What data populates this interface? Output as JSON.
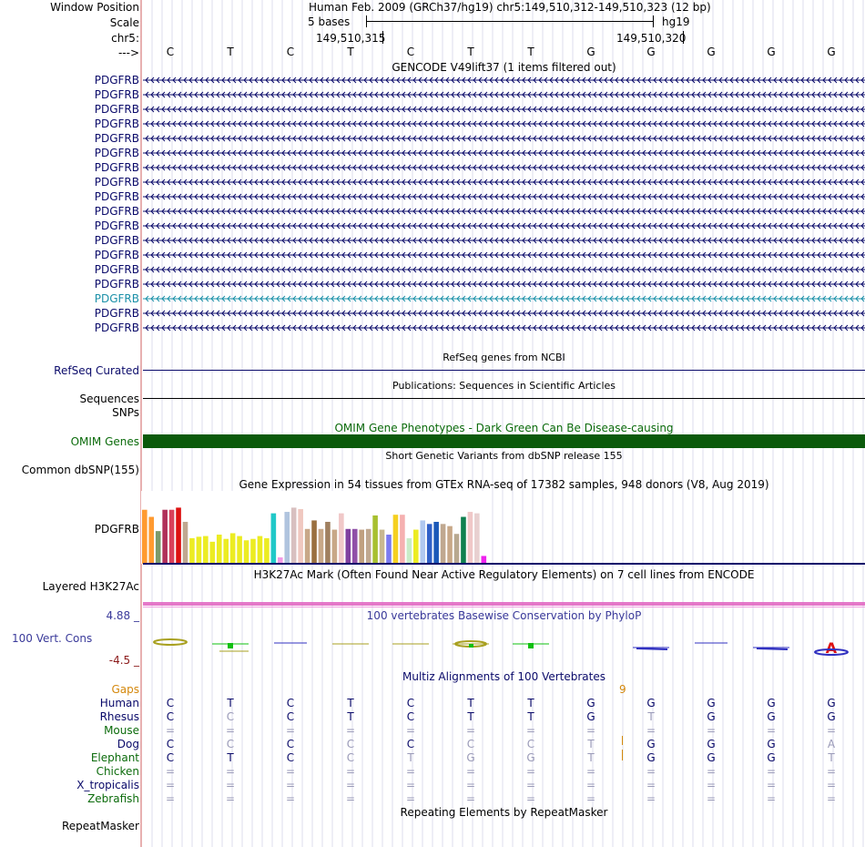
{
  "colors": {
    "navy": "#0a0a6a",
    "green": "#0b6b0b",
    "omim": "#0b5a0b",
    "gaps": "#d4880c",
    "h3k27": "#e060c0",
    "phylopUp": "#3030c0",
    "phylopDown": "#8b1a1a"
  },
  "ruler": {
    "window_label": "Window Position",
    "scale_label": "Scale",
    "chrom_label": "chr5:",
    "strand_label": "--->",
    "assembly_text": "Human Feb. 2009 (GRCh37/hg19)   chr5:149,510,312-149,510,323 (12 bp)",
    "scale_text": "5 bases",
    "db_text": "hg19",
    "coord1": "149,510,315",
    "coord2": "149,510,320",
    "bases": [
      "C",
      "T",
      "C",
      "T",
      "C",
      "T",
      "T",
      "G",
      "G",
      "G",
      "G",
      "G"
    ]
  },
  "gencode": {
    "title": "GENCODE V49lift37 (1 items filtered out)",
    "items": [
      {
        "label": "PDGFRB",
        "highlight": false
      },
      {
        "label": "PDGFRB",
        "highlight": false
      },
      {
        "label": "PDGFRB",
        "highlight": false
      },
      {
        "label": "PDGFRB",
        "highlight": false
      },
      {
        "label": "PDGFRB",
        "highlight": false
      },
      {
        "label": "PDGFRB",
        "highlight": false
      },
      {
        "label": "PDGFRB",
        "highlight": false
      },
      {
        "label": "PDGFRB",
        "highlight": false
      },
      {
        "label": "PDGFRB",
        "highlight": false
      },
      {
        "label": "PDGFRB",
        "highlight": false
      },
      {
        "label": "PDGFRB",
        "highlight": false
      },
      {
        "label": "PDGFRB",
        "highlight": false
      },
      {
        "label": "PDGFRB",
        "highlight": false
      },
      {
        "label": "PDGFRB",
        "highlight": false
      },
      {
        "label": "PDGFRB",
        "highlight": false
      },
      {
        "label": "PDGFRB",
        "highlight": true
      },
      {
        "label": "PDGFRB",
        "highlight": false
      },
      {
        "label": "PDGFRB",
        "highlight": false
      }
    ]
  },
  "refseq": {
    "title": "RefSeq genes from NCBI",
    "label": "RefSeq Curated"
  },
  "publications": {
    "title": "Publications: Sequences in Scientific Articles",
    "label_sequences": "Sequences",
    "label_snps": "SNPs"
  },
  "omim": {
    "title": "OMIM Gene Phenotypes - Dark Green Can Be Disease-causing",
    "label": "OMIM Genes"
  },
  "dbsnp": {
    "title": "Short Genetic Variants from dbSNP release 155",
    "label": "Common dbSNP(155)"
  },
  "gtex": {
    "title": "Gene Expression in 54 tissues from GTEx RNA-seq of 17382 samples, 948 donors (V8, Aug 2019)",
    "label": "PDGFRB",
    "bars": [
      {
        "v": 0.76,
        "c": "#ff9a30"
      },
      {
        "v": 0.66,
        "c": "#ff9a30"
      },
      {
        "v": 0.46,
        "c": "#7a9a6a"
      },
      {
        "v": 0.76,
        "c": "#b0305a"
      },
      {
        "v": 0.76,
        "c": "#d8405a"
      },
      {
        "v": 0.79,
        "c": "#dd1010"
      },
      {
        "v": 0.59,
        "c": "#c0a890"
      },
      {
        "v": 0.36,
        "c": "#ecec22"
      },
      {
        "v": 0.38,
        "c": "#ecec22"
      },
      {
        "v": 0.39,
        "c": "#ecec22"
      },
      {
        "v": 0.31,
        "c": "#ecec22"
      },
      {
        "v": 0.41,
        "c": "#ecec22"
      },
      {
        "v": 0.35,
        "c": "#ecec22"
      },
      {
        "v": 0.43,
        "c": "#ecec22"
      },
      {
        "v": 0.39,
        "c": "#ecec22"
      },
      {
        "v": 0.33,
        "c": "#ecec22"
      },
      {
        "v": 0.35,
        "c": "#ecec22"
      },
      {
        "v": 0.39,
        "c": "#ecec22"
      },
      {
        "v": 0.36,
        "c": "#ecec22"
      },
      {
        "v": 0.71,
        "c": "#20c8c8"
      },
      {
        "v": 0.09,
        "c": "#f39ae6"
      },
      {
        "v": 0.73,
        "c": "#b0c4de"
      },
      {
        "v": 0.79,
        "c": "#d8c0c0"
      },
      {
        "v": 0.77,
        "c": "#f0c8c0"
      },
      {
        "v": 0.49,
        "c": "#c8a888"
      },
      {
        "v": 0.61,
        "c": "#9a7040"
      },
      {
        "v": 0.49,
        "c": "#c8a888"
      },
      {
        "v": 0.59,
        "c": "#a08060"
      },
      {
        "v": 0.48,
        "c": "#c8a888"
      },
      {
        "v": 0.71,
        "c": "#f0c8c8"
      },
      {
        "v": 0.49,
        "c": "#8040a0"
      },
      {
        "v": 0.49,
        "c": "#9050a8"
      },
      {
        "v": 0.48,
        "c": "#c0a080"
      },
      {
        "v": 0.49,
        "c": "#c0a890"
      },
      {
        "v": 0.68,
        "c": "#a8c030"
      },
      {
        "v": 0.48,
        "c": "#c8b890"
      },
      {
        "v": 0.41,
        "c": "#7a7af0"
      },
      {
        "v": 0.69,
        "c": "#f5d020"
      },
      {
        "v": 0.69,
        "c": "#f5b0b0"
      },
      {
        "v": 0.36,
        "c": "#c8ecc8"
      },
      {
        "v": 0.48,
        "c": "#ecec22"
      },
      {
        "v": 0.61,
        "c": "#b0c8f0"
      },
      {
        "v": 0.56,
        "c": "#3060c8"
      },
      {
        "v": 0.59,
        "c": "#1a58b8"
      },
      {
        "v": 0.56,
        "c": "#c0a890"
      },
      {
        "v": 0.53,
        "c": "#c8a888"
      },
      {
        "v": 0.42,
        "c": "#b8a890"
      },
      {
        "v": 0.66,
        "c": "#108050"
      },
      {
        "v": 0.73,
        "c": "#f0c8c8"
      },
      {
        "v": 0.71,
        "c": "#e8d0d0"
      },
      {
        "v": 0.11,
        "c": "#ee22ee"
      }
    ]
  },
  "h3k27": {
    "title": "H3K27Ac Mark (Often Found Near Active Regulatory Elements) on 7 cell lines from ENCODE",
    "label": "Layered H3K27Ac"
  },
  "phylop": {
    "title": "100 vertebrates Basewise Conservation by PhyloP",
    "label": "100 Vert. Cons",
    "max_text": "4.88 _",
    "min_text": "-4.5 _",
    "values": [
      -0.4,
      -0.9,
      0.0,
      -0.15,
      -0.1,
      -0.5,
      -0.4,
      0.0,
      0.2,
      0.0,
      0.15,
      0.9
    ]
  },
  "multiz": {
    "title": "Multiz Alignments of 100 Vertebrates",
    "gaps_label": "Gaps",
    "gaps_marker": "9",
    "species": [
      {
        "name": "Human",
        "color": "#0a0a6a",
        "bases": [
          "C",
          "T",
          "C",
          "T",
          "C",
          "T",
          "T",
          "G",
          "G",
          "G",
          "G",
          "G"
        ],
        "light": [
          false,
          false,
          false,
          false,
          false,
          false,
          false,
          false,
          false,
          false,
          false,
          false
        ]
      },
      {
        "name": "Rhesus",
        "color": "#0a0a6a",
        "bases": [
          "C",
          "C",
          "C",
          "T",
          "C",
          "T",
          "T",
          "G",
          "T",
          "G",
          "G",
          "G"
        ],
        "light": [
          false,
          true,
          false,
          false,
          false,
          false,
          false,
          false,
          true,
          false,
          false,
          false
        ]
      },
      {
        "name": "Mouse",
        "color": "#0b6b0b",
        "bases": [
          "=",
          "=",
          "=",
          "=",
          "=",
          "=",
          "=",
          "=",
          "=",
          "=",
          "=",
          "="
        ],
        "light": [
          true,
          true,
          true,
          true,
          true,
          true,
          true,
          true,
          true,
          true,
          true,
          true
        ]
      },
      {
        "name": "Dog",
        "color": "#0a0a6a",
        "bases": [
          "C",
          "C",
          "C",
          "C",
          "C",
          "C",
          "C",
          "T",
          "G",
          "G",
          "G",
          "A"
        ],
        "light": [
          false,
          true,
          false,
          true,
          false,
          true,
          true,
          true,
          false,
          false,
          false,
          true
        ]
      },
      {
        "name": "Elephant",
        "color": "#0b6b0b",
        "bases": [
          "C",
          "T",
          "C",
          "C",
          "T",
          "G",
          "G",
          "T",
          "G",
          "G",
          "G",
          "T"
        ],
        "light": [
          false,
          false,
          false,
          true,
          true,
          true,
          true,
          true,
          false,
          false,
          false,
          true
        ]
      },
      {
        "name": "Chicken",
        "color": "#0b6b0b",
        "bases": [
          "=",
          "=",
          "=",
          "=",
          "=",
          "=",
          "=",
          "=",
          "=",
          "=",
          "=",
          "="
        ],
        "light": [
          true,
          true,
          true,
          true,
          true,
          true,
          true,
          true,
          true,
          true,
          true,
          true
        ]
      },
      {
        "name": "X_tropicalis",
        "color": "#0a0a6a",
        "bases": [
          "=",
          "=",
          "=",
          "=",
          "=",
          "=",
          "=",
          "=",
          "=",
          "=",
          "=",
          "="
        ],
        "light": [
          true,
          true,
          true,
          true,
          true,
          true,
          true,
          true,
          true,
          true,
          true,
          true
        ]
      },
      {
        "name": "Zebrafish",
        "color": "#0b6b0b",
        "bases": [
          "=",
          "=",
          "=",
          "=",
          "=",
          "=",
          "=",
          "=",
          "=",
          "=",
          "=",
          "="
        ],
        "light": [
          true,
          true,
          true,
          true,
          true,
          true,
          true,
          true,
          true,
          true,
          true,
          true
        ]
      }
    ]
  },
  "repeatmasker": {
    "title": "Repeating Elements by RepeatMasker",
    "label": "RepeatMasker"
  }
}
